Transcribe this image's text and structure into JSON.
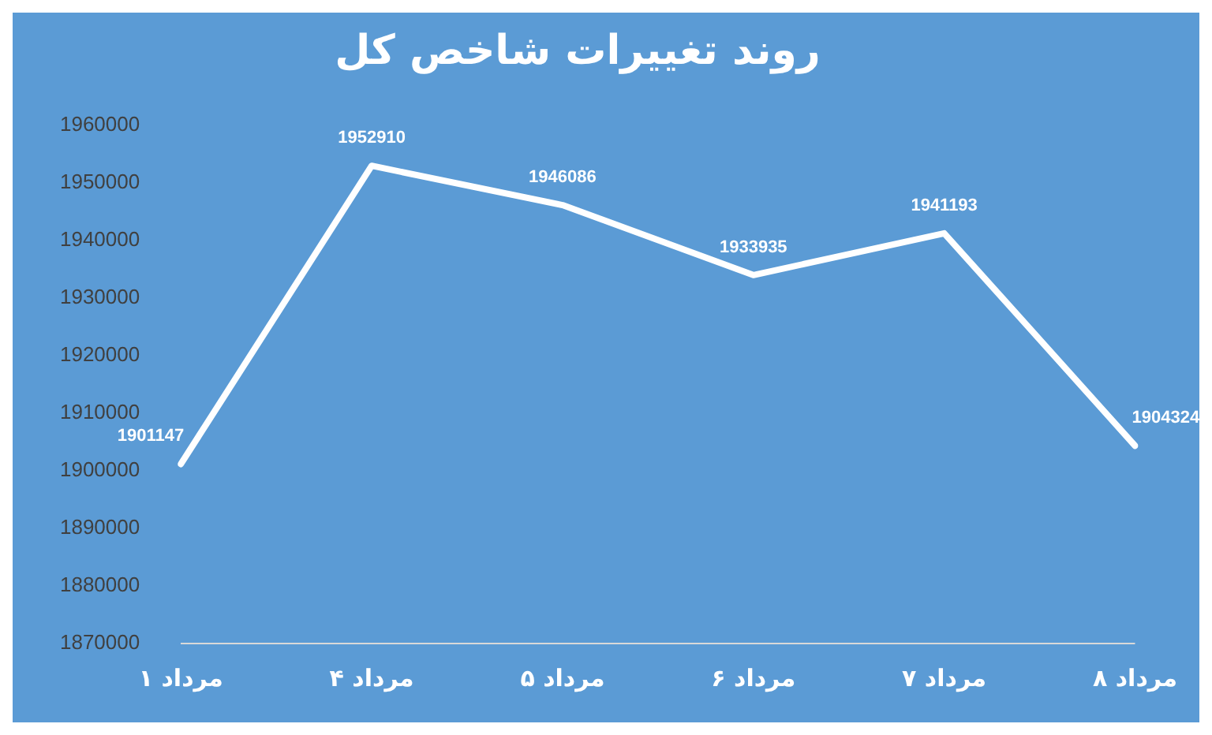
{
  "chart_data": {
    "type": "line",
    "title": "روند تغییرات شاخص کل",
    "categories": [
      "۱ مرداد",
      "۴ مرداد",
      "۵ مرداد",
      "۶ مرداد",
      "۷ مرداد",
      "۸ مرداد"
    ],
    "series": [
      {
        "color": "#ffffff",
        "values": [
          1901147,
          1952910,
          1946086,
          1933935,
          1941193,
          1904324
        ]
      }
    ],
    "ylim": [
      1870000,
      1960000
    ],
    "yticks": [
      1870000,
      1880000,
      1890000,
      1900000,
      1910000,
      1920000,
      1930000,
      1940000,
      1950000,
      1960000
    ],
    "grid": false,
    "legend": false,
    "marker": "none",
    "line_style": "solid",
    "data_labels": true
  }
}
